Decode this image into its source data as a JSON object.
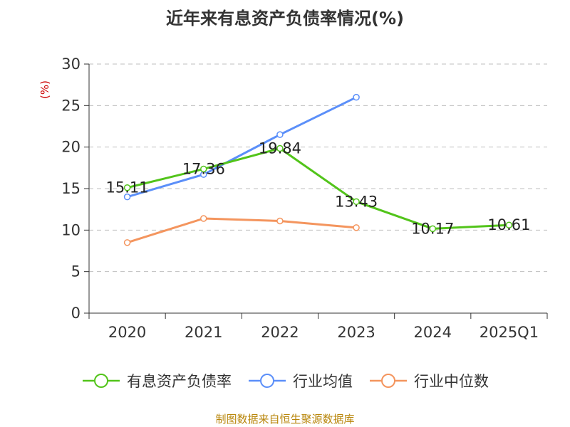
{
  "chart_data": {
    "type": "line",
    "title": "近年来有息资产负债率情况(%)",
    "ylabel": "(%)",
    "categories": [
      "2020",
      "2021",
      "2022",
      "2023",
      "2024",
      "2025Q1"
    ],
    "ylim": [
      0,
      30
    ],
    "yticks": [
      0,
      5,
      10,
      15,
      20,
      25,
      30
    ],
    "grid": true,
    "legend_position": "bottom",
    "series": [
      {
        "name": "有息资产负债率",
        "color": "#52c41a",
        "values": [
          15.11,
          17.36,
          19.84,
          13.43,
          10.17,
          10.61
        ],
        "labels": [
          "15.11",
          "17.36",
          "19.84",
          "13.43",
          "10.17",
          "10.61"
        ]
      },
      {
        "name": "行业均值",
        "color": "#5b8ff9",
        "values": [
          14.0,
          16.7,
          21.5,
          26.0,
          null,
          null
        ]
      },
      {
        "name": "行业中位数",
        "color": "#f4955e",
        "values": [
          8.5,
          11.4,
          11.1,
          10.3,
          null,
          null
        ]
      }
    ]
  },
  "footer": {
    "source": "制图数据来自恒生聚源数据库"
  }
}
